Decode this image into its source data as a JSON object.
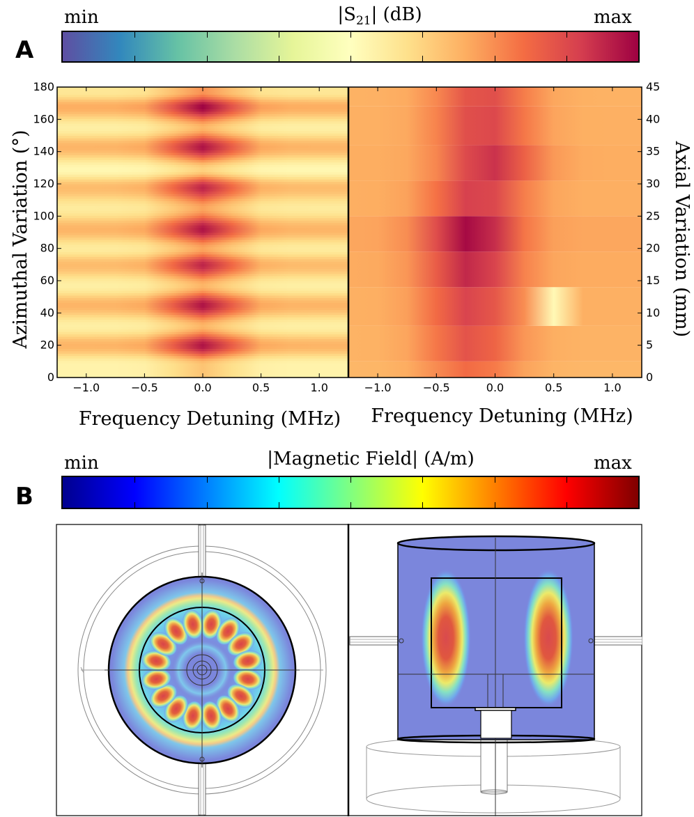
{
  "panel_a": {
    "letter": "A",
    "colorbar": {
      "min_label": "min",
      "max_label": "max",
      "title": "|S",
      "title_sub": "21",
      "title_tail": "| (dB)",
      "colormap": "Spectral_r",
      "colors": [
        "#5e4fa2",
        "#3288bd",
        "#66c2a5",
        "#abdda4",
        "#e6f598",
        "#ffffbf",
        "#fee08b",
        "#fdae61",
        "#f46d43",
        "#d53e4f",
        "#9e0142"
      ]
    },
    "left_plot": {
      "xlabel": "Frequency Detuning (MHz)",
      "ylabel": "Azimuthal Variation (°)"
    },
    "right_plot": {
      "xlabel": "Frequency Detuning (MHz)",
      "ylabel": "Axial Variation (mm)"
    }
  },
  "panel_b": {
    "letter": "B",
    "colorbar": {
      "min_label": "min",
      "max_label": "max",
      "title": "|Magnetic Field| (A/m)",
      "colormap": "jet",
      "colors": [
        "#00008f",
        "#0000ff",
        "#0080ff",
        "#00ffff",
        "#80ff80",
        "#ffff00",
        "#ff8000",
        "#ff0000",
        "#800000"
      ]
    },
    "left_view": "top-view-simulation",
    "right_view": "side-view-simulation"
  },
  "chart_data": [
    {
      "type": "heatmap",
      "title": "",
      "xlabel": "Frequency Detuning (MHz)",
      "ylabel": "Azimuthal Variation (°)",
      "xlim": [
        -1.25,
        1.25
      ],
      "ylim": [
        0,
        180
      ],
      "x_ticks": [
        -1.0,
        -0.5,
        0.0,
        0.5,
        1.0
      ],
      "x_tick_labels": [
        "−1.0",
        "−0.5",
        "0.0",
        "0.5",
        "1.0"
      ],
      "y_ticks": [
        0,
        20,
        40,
        60,
        80,
        100,
        120,
        140,
        160,
        180
      ],
      "y_tick_labels": [
        "0",
        "20",
        "40",
        "60",
        "80",
        "100",
        "120",
        "140",
        "160",
        "180"
      ],
      "resonance_center_mhz": 0.0,
      "bands": [
        {
          "angle": 8,
          "level": 0.4
        },
        {
          "angle": 20,
          "level": 0.95
        },
        {
          "angle": 32,
          "level": 0.45
        },
        {
          "angle": 45,
          "level": 0.95
        },
        {
          "angle": 57,
          "level": 0.45
        },
        {
          "angle": 70,
          "level": 0.9
        },
        {
          "angle": 80,
          "level": 0.5
        },
        {
          "angle": 92,
          "level": 0.95
        },
        {
          "angle": 105,
          "level": 0.5
        },
        {
          "angle": 118,
          "level": 0.9
        },
        {
          "angle": 129,
          "level": 0.35
        },
        {
          "angle": 143,
          "level": 0.95
        },
        {
          "angle": 155,
          "level": 0.45
        },
        {
          "angle": 168,
          "level": 1.0
        },
        {
          "angle": 177,
          "level": 0.55
        }
      ]
    },
    {
      "type": "heatmap",
      "title": "",
      "xlabel": "Frequency Detuning (MHz)",
      "ylabel": "Axial Variation (mm)",
      "xlim": [
        -1.25,
        1.25
      ],
      "ylim": [
        0,
        45
      ],
      "x_ticks": [
        -1.0,
        -0.5,
        0.0,
        0.5,
        1.0
      ],
      "x_tick_labels": [
        "−1.0",
        "−0.5",
        "0.0",
        "0.5",
        "1.0"
      ],
      "y_ticks": [
        0,
        5,
        10,
        15,
        20,
        25,
        30,
        35,
        40,
        45
      ],
      "y_tick_labels": [
        "0",
        "5",
        "10",
        "15",
        "20",
        "25",
        "30",
        "35",
        "40",
        "45"
      ],
      "bands": [
        {
          "y0": 0,
          "y1": 2.5,
          "center": -0.2,
          "level": 0.45
        },
        {
          "y0": 2.5,
          "y1": 8,
          "center": -0.2,
          "level": 0.6
        },
        {
          "y0": 8,
          "y1": 14,
          "center": -0.2,
          "level": 0.7
        },
        {
          "y0": 14,
          "y1": 19.5,
          "center": -0.2,
          "level": 0.85
        },
        {
          "y0": 19.5,
          "y1": 25,
          "center": -0.2,
          "level": 1.0
        },
        {
          "y0": 25,
          "y1": 30.5,
          "center": -0.15,
          "level": 0.75
        },
        {
          "y0": 30.5,
          "y1": 36,
          "center": -0.05,
          "level": 0.8
        },
        {
          "y0": 36,
          "y1": 42,
          "center": -0.1,
          "level": 0.7
        },
        {
          "y0": 42,
          "y1": 45,
          "center": -0.1,
          "level": 0.65
        }
      ]
    }
  ]
}
